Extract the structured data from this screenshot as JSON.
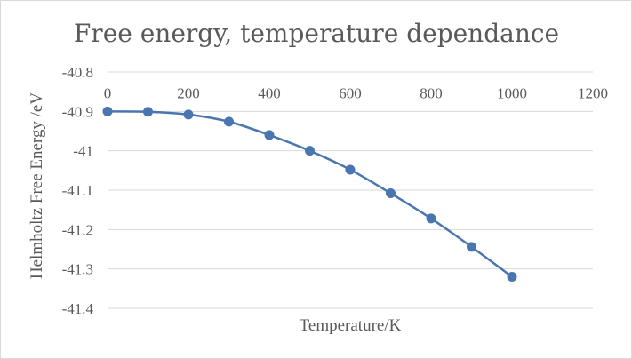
{
  "chart_data": {
    "type": "scatter",
    "title": "Free energy, temperature dependance",
    "xlabel": "Temperature/K",
    "ylabel": "Helmholtz Free Energy /eV",
    "xlim": [
      0,
      1200
    ],
    "ylim": [
      -41.4,
      -40.8
    ],
    "xticks": [
      "0",
      "200",
      "400",
      "600",
      "800",
      "1000",
      "1200"
    ],
    "yticks": [
      "-40.8",
      "-40.9",
      "-41",
      "-41.1",
      "-41.2",
      "-41.3",
      "-41.4"
    ],
    "grid": true,
    "legend": "none",
    "smoothed_line": true,
    "series": [
      {
        "name": "Helmholtz Free Energy",
        "color": "#4a76b0",
        "x": [
          0,
          100,
          200,
          300,
          400,
          500,
          600,
          700,
          800,
          900,
          1000
        ],
        "y": [
          -40.9,
          -40.901,
          -40.908,
          -40.926,
          -40.96,
          -41.0,
          -41.048,
          -41.108,
          -41.172,
          -41.244,
          -41.32
        ]
      }
    ]
  }
}
